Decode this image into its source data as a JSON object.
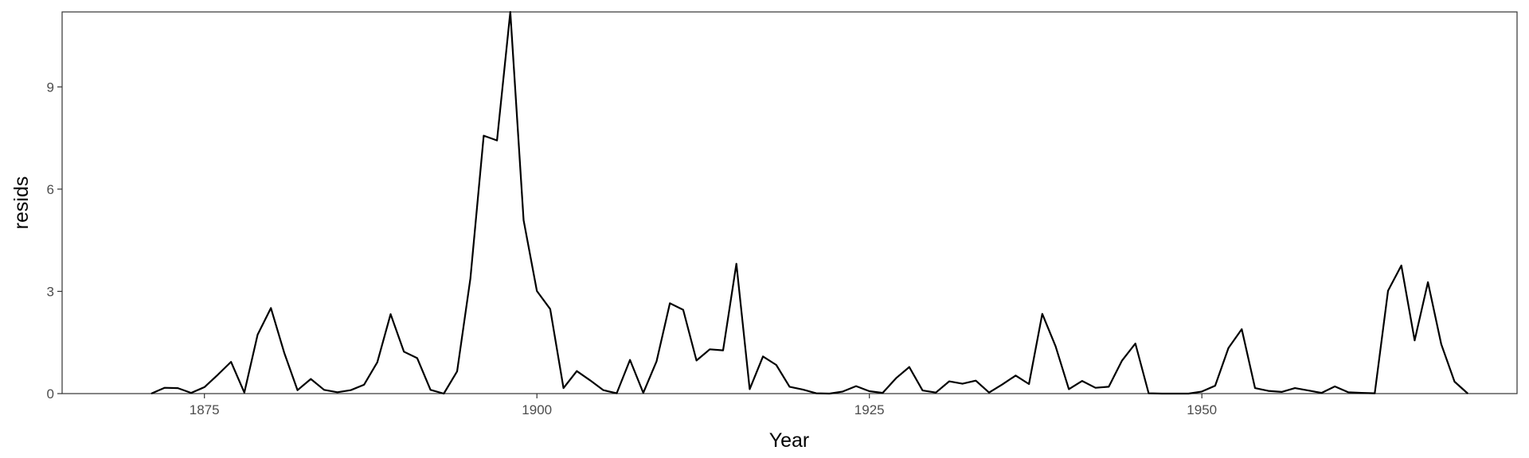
{
  "chart_data": {
    "type": "line",
    "title": "",
    "xlabel": "Year",
    "ylabel": "resids",
    "xlim": [
      1864.3,
      1973.7
    ],
    "ylim": [
      0,
      11.2
    ],
    "x_ticks": [
      1875,
      1900,
      1925,
      1950
    ],
    "x_tick_labels": [
      "1875",
      "1900",
      "1925",
      "1950"
    ],
    "y_ticks": [
      0,
      3,
      6,
      9
    ],
    "y_tick_labels": [
      "0",
      "3",
      "6",
      "9"
    ],
    "grid": false,
    "line_color": "#000000",
    "series": [
      {
        "x": [
          1871,
          1872,
          1873,
          1874,
          1875,
          1876,
          1877,
          1878,
          1879,
          1880,
          1881,
          1882,
          1883,
          1884,
          1885,
          1886,
          1887,
          1888,
          1889,
          1890,
          1891,
          1892,
          1893,
          1894,
          1895,
          1896,
          1897,
          1898,
          1899,
          1900,
          1901,
          1902,
          1903,
          1904,
          1905,
          1906,
          1907,
          1908,
          1909,
          1910,
          1911,
          1912,
          1913,
          1914,
          1915,
          1916,
          1917,
          1918,
          1919,
          1920,
          1921,
          1922,
          1923,
          1924,
          1925,
          1926,
          1927,
          1928,
          1929,
          1930,
          1931,
          1932,
          1933,
          1934,
          1935,
          1936,
          1937,
          1938,
          1939,
          1940,
          1941,
          1942,
          1943,
          1944,
          1945,
          1946,
          1947,
          1948,
          1949,
          1950,
          1951,
          1952,
          1953,
          1954,
          1955,
          1956,
          1957,
          1958,
          1959,
          1960,
          1961,
          1962,
          1963,
          1964,
          1965,
          1966,
          1967,
          1968,
          1969,
          1970
        ],
        "y": [
          0.0,
          0.17,
          0.16,
          0.02,
          0.19,
          0.55,
          0.93,
          0.03,
          1.73,
          2.51,
          1.2,
          0.1,
          0.43,
          0.11,
          0.04,
          0.1,
          0.26,
          0.92,
          2.33,
          1.23,
          1.04,
          0.11,
          0.0,
          0.65,
          3.38,
          7.57,
          7.43,
          11.2,
          5.09,
          3.01,
          2.48,
          0.16,
          0.66,
          0.39,
          0.1,
          0.01,
          0.99,
          0.02,
          0.95,
          2.65,
          2.46,
          0.97,
          1.3,
          1.27,
          3.81,
          0.13,
          1.09,
          0.84,
          0.2,
          0.12,
          0.01,
          0.0,
          0.06,
          0.22,
          0.07,
          0.02,
          0.45,
          0.78,
          0.09,
          0.03,
          0.36,
          0.29,
          0.38,
          0.03,
          0.27,
          0.53,
          0.28,
          2.34,
          1.39,
          0.13,
          0.37,
          0.17,
          0.2,
          0.97,
          1.47,
          0.01,
          0.0,
          0.0,
          0.0,
          0.06,
          0.23,
          1.34,
          1.89,
          0.16,
          0.08,
          0.05,
          0.16,
          0.09,
          0.02,
          0.21,
          0.04,
          0.02,
          0.01,
          3.02,
          3.76,
          1.56,
          3.27,
          1.45,
          0.35,
          0.0
        ]
      }
    ]
  }
}
